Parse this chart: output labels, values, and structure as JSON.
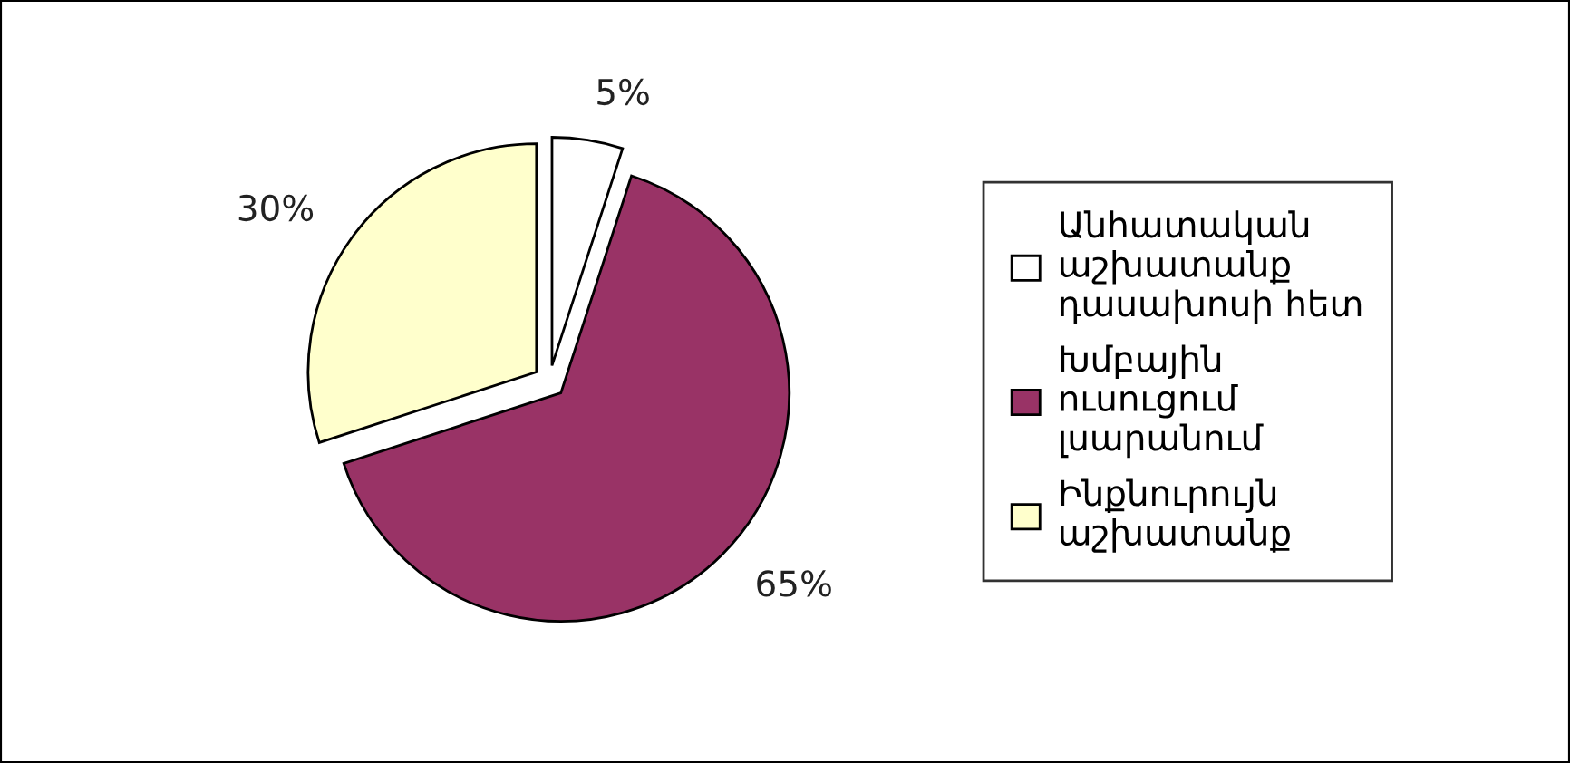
{
  "chart_data": {
    "type": "pie",
    "categories": [
      "Անհատական աշխատանք դասախոսի հետ",
      "Խմբային ուսուցում լսարանում",
      "Ինքնուրույն աշխատանք"
    ],
    "values": [
      5,
      65,
      30
    ],
    "value_labels": [
      "5%",
      "65%",
      "30%"
    ],
    "colors": [
      "#ffffff",
      "#993366",
      "#ffffcc"
    ],
    "legend": "right"
  }
}
